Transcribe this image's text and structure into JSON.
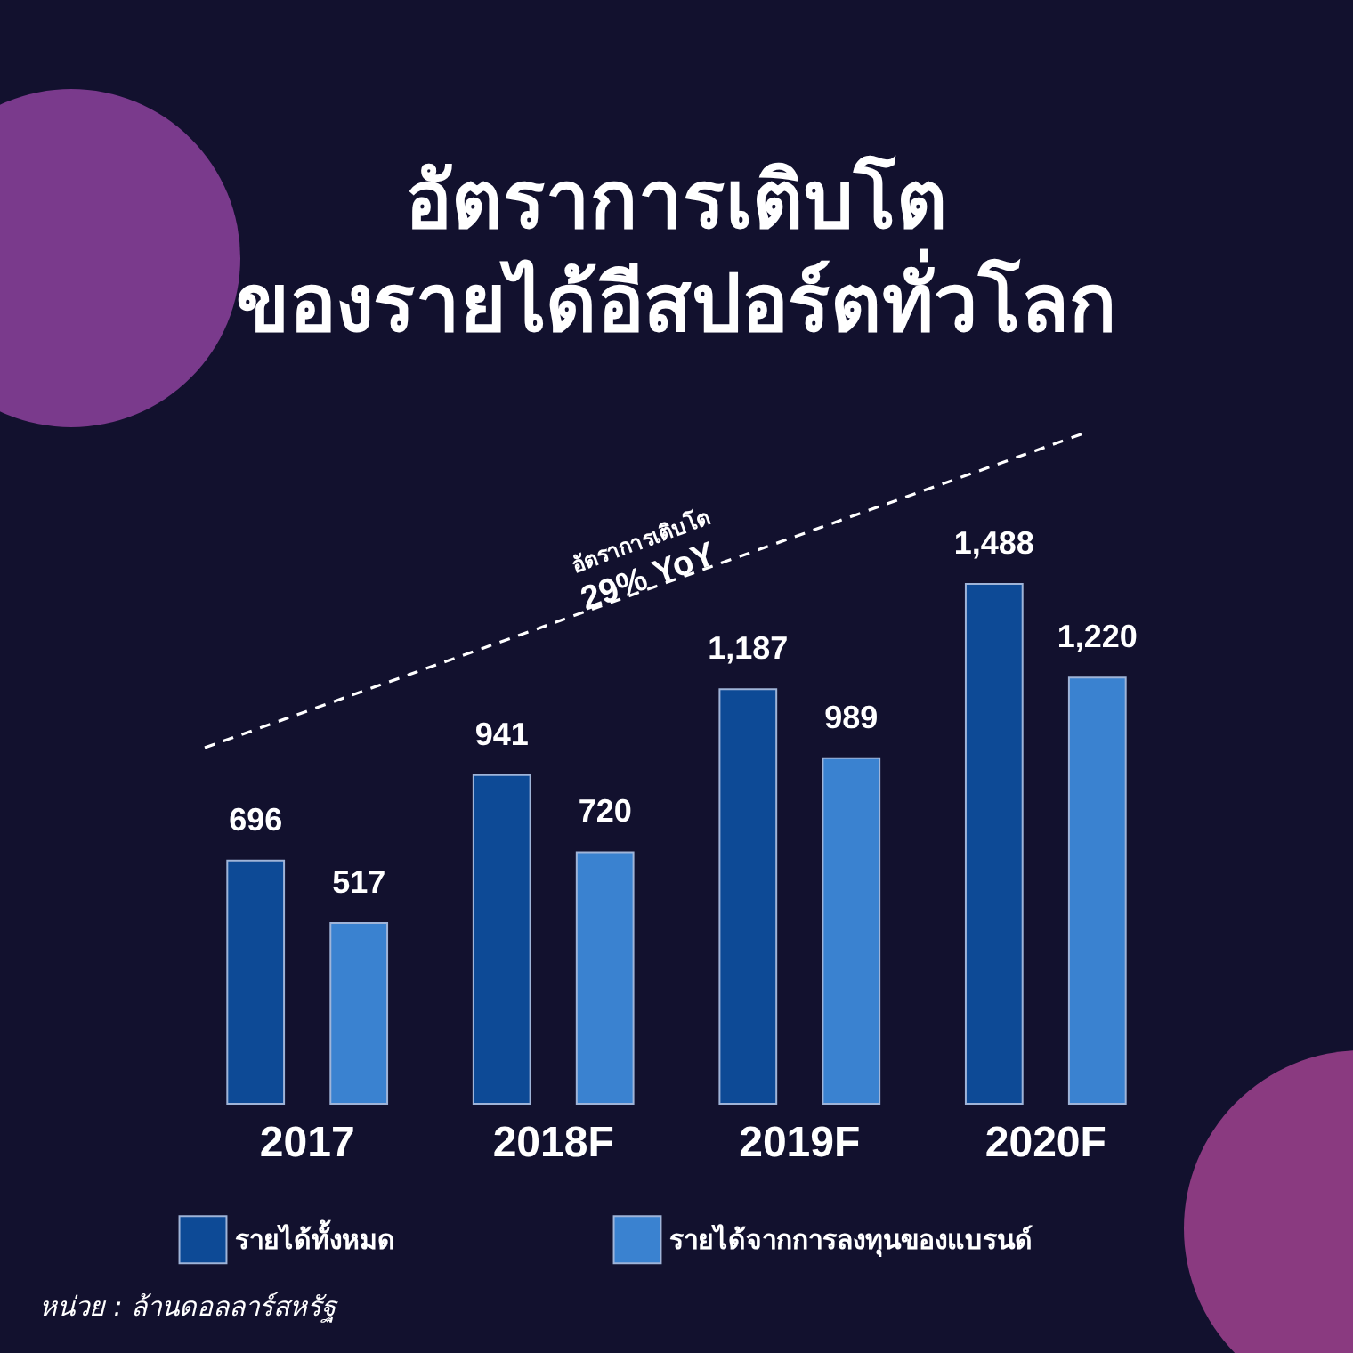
{
  "chart_data": {
    "type": "bar",
    "title": [
      "อัตราการเติบโต",
      "ของรายได้อีสปอร์ตทั่วโลก"
    ],
    "categories": [
      "2017",
      "2018F",
      "2019F",
      "2020F"
    ],
    "series": [
      {
        "name": "รายได้ทั้งหมด",
        "color": "#0d4a96",
        "values": [
          696,
          941,
          1187,
          1488
        ],
        "value_labels": [
          "696",
          "941",
          "1,187",
          "1,488"
        ]
      },
      {
        "name": "รายได้จากการลงทุนของแบรนด์",
        "color": "#3a82d0",
        "values": [
          517,
          720,
          989,
          1220
        ],
        "value_labels": [
          "517",
          "720",
          "989",
          "1,220"
        ]
      }
    ],
    "legend": "bottom",
    "grid": false,
    "annotations": [
      "อัตราการเติบโต",
      "29% YoY",
      "หน่วย : ล้านดอลลาร์สหรัฐ"
    ]
  }
}
